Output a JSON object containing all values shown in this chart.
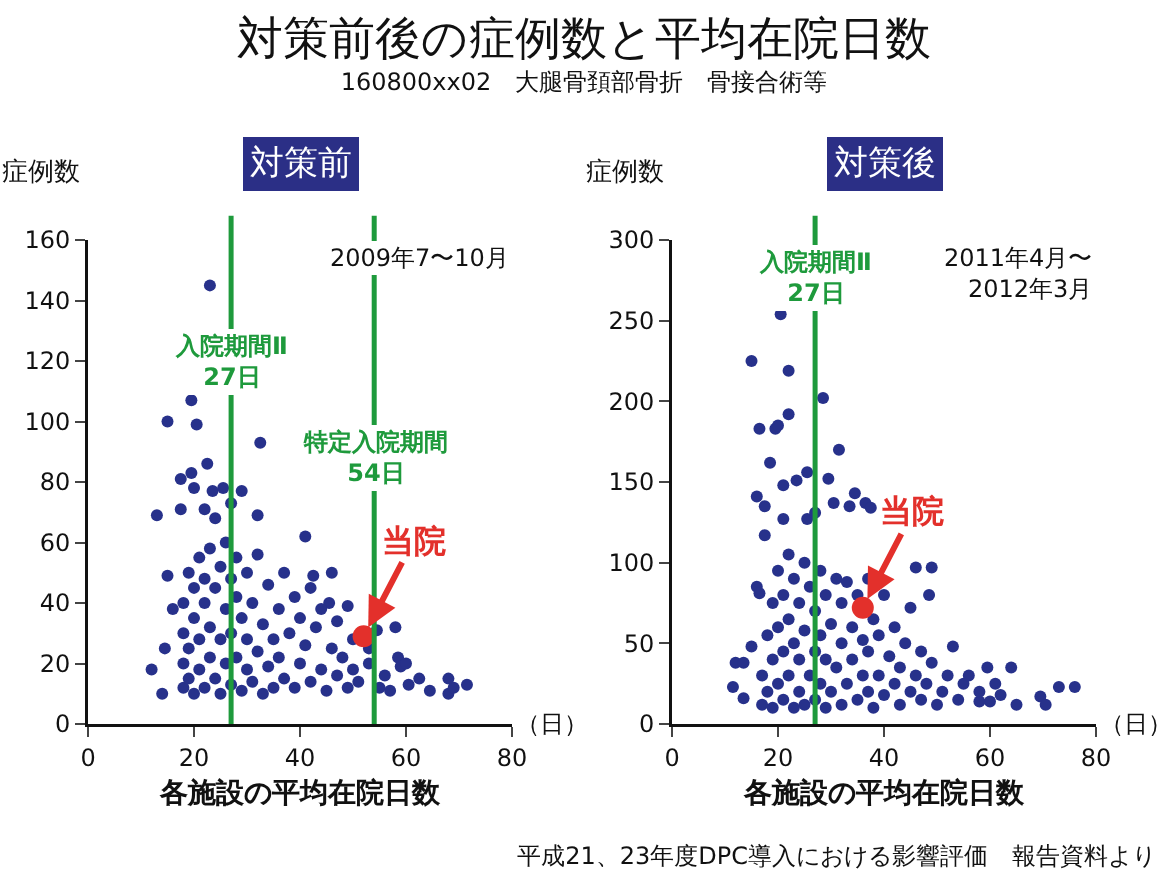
{
  "chart_data": [
    {
      "type": "other",
      "title": "対策前後の症例数と平均在院日数",
      "subtitle": "160800xx02　大腿骨頚部骨折　骨接合術等",
      "annotations": [
        "平成21、23年度DPC導入における影響評価　報告資料より"
      ]
    },
    {
      "type": "scatter",
      "title": "対策前",
      "xlabel": "各施設の平均在院日数",
      "ylabel": "症例数",
      "xlim": [
        0,
        80
      ],
      "xticks": [
        0,
        20,
        40,
        60,
        80
      ],
      "ylim": [
        0,
        160
      ],
      "yticks": [
        0,
        20,
        40,
        60,
        80,
        100,
        120,
        140,
        160
      ],
      "grid": false,
      "legend": false,
      "marker": "circle",
      "annotations": [
        "2009年7〜10月",
        "（日）"
      ],
      "ref_lines": [
        {
          "axis": "x",
          "value": 27,
          "label": "入院期間Ⅱ\n27日",
          "color": "#1e9a3c"
        },
        {
          "axis": "x",
          "value": 54,
          "label": "特定入院期間\n54日",
          "color": "#1e9a3c"
        }
      ],
      "series": [
        {
          "color": "#27318b",
          "x": [
            23,
            15,
            19.5,
            20.5,
            22.5,
            17.5,
            19.5,
            20,
            23.5,
            25.5,
            13,
            17.5,
            22,
            24,
            29,
            32.5,
            32,
            41,
            27,
            54.5,
            58,
            58.5,
            59,
            60.5,
            62.5,
            64.5,
            68,
            68,
            69,
            71.5,
            46,
            45.5,
            49,
            42.5,
            12,
            14.5,
            16,
            15,
            14,
            18,
            18,
            18,
            18,
            19,
            19,
            19,
            20,
            20,
            20,
            21,
            21,
            21,
            22,
            22,
            22,
            23,
            23,
            23,
            24,
            24,
            25,
            25,
            25,
            26,
            26,
            26,
            27,
            27,
            27,
            28,
            28,
            28,
            29,
            29,
            30,
            30,
            30,
            31,
            31,
            32,
            32,
            33,
            33,
            34,
            34,
            35,
            35,
            36,
            36,
            37,
            37,
            38,
            39,
            39,
            40,
            40,
            41,
            42,
            42,
            43,
            44,
            44,
            45,
            46,
            47,
            47,
            48,
            49,
            50,
            50,
            51,
            53,
            53,
            55,
            56,
            57,
            60
          ],
          "values": [
            145,
            100,
            107,
            99,
            86,
            81,
            83,
            78,
            77,
            78,
            69,
            71,
            71,
            68,
            77,
            93,
            69,
            62,
            73,
            31,
            32,
            22,
            19,
            13,
            15,
            11,
            15,
            10,
            12,
            13,
            50,
            40,
            39,
            49,
            18,
            25,
            38,
            49,
            10,
            12,
            20,
            30,
            40,
            15,
            25,
            50,
            10,
            35,
            45,
            18,
            28,
            55,
            12,
            40,
            48,
            22,
            32,
            58,
            15,
            45,
            10,
            28,
            52,
            20,
            38,
            60,
            13,
            30,
            48,
            22,
            42,
            55,
            11,
            35,
            18,
            28,
            50,
            14,
            40,
            24,
            56,
            10,
            33,
            19,
            46,
            28,
            12,
            38,
            22,
            15,
            50,
            30,
            12,
            42,
            20,
            35,
            26,
            14,
            45,
            32,
            18,
            38,
            11,
            25,
            16,
            34,
            22,
            12,
            28,
            18,
            14,
            20,
            25,
            12,
            16,
            11,
            20
          ]
        },
        {
          "name": "当院",
          "color": "#e3302b",
          "x": [
            52
          ],
          "values": [
            29
          ]
        }
      ]
    },
    {
      "type": "scatter",
      "title": "対策後",
      "xlabel": "各施設の平均在院日数",
      "ylabel": "症例数",
      "xlim": [
        0,
        80
      ],
      "xticks": [
        0,
        20,
        40,
        60,
        80
      ],
      "ylim": [
        0,
        300
      ],
      "yticks": [
        0,
        50,
        100,
        150,
        200,
        250,
        300
      ],
      "grid": false,
      "legend": false,
      "marker": "circle",
      "annotations": [
        "2011年4月〜\n2012年3月",
        "（日）"
      ],
      "ref_lines": [
        {
          "axis": "x",
          "value": 27,
          "label": "入院期間Ⅱ\n27日",
          "color": "#1e9a3c"
        }
      ],
      "series": [
        {
          "color": "#27318b",
          "x": [
            20.5,
            15,
            22,
            28.5,
            22,
            16.5,
            19.5,
            20,
            31.5,
            18.5,
            25.5,
            23.5,
            21,
            29.5,
            34.5,
            16,
            17.5,
            36.5,
            33.5,
            30.5,
            37.5,
            21,
            17.5,
            25.5,
            46,
            49,
            48.5,
            53,
            59.5,
            64,
            73,
            76,
            69.5,
            70.5,
            58,
            12,
            13.5,
            11.5,
            13.5,
            15,
            16,
            16.5,
            27,
            17,
            17,
            18,
            18,
            19,
            19,
            19,
            20,
            20,
            20,
            21,
            21,
            21,
            22,
            22,
            22,
            23,
            23,
            23,
            24,
            24,
            24,
            25,
            25,
            25,
            26,
            26,
            27,
            27,
            27,
            28,
            28,
            28,
            29,
            29,
            29,
            30,
            30,
            31,
            31,
            32,
            32,
            32,
            33,
            33,
            34,
            34,
            35,
            35,
            36,
            36,
            37,
            37,
            37,
            38,
            38,
            39,
            39,
            40,
            40,
            41,
            42,
            42,
            43,
            43,
            44,
            45,
            45,
            46,
            47,
            47,
            48,
            49,
            50,
            51,
            52,
            54,
            55,
            56,
            58,
            60,
            61,
            62,
            65
          ],
          "values": [
            254,
            225,
            219,
            202,
            192,
            183,
            183,
            185,
            170,
            162,
            156,
            151,
            148,
            152,
            143,
            141,
            135,
            137,
            135,
            137,
            134,
            127,
            117,
            127,
            97,
            97,
            80,
            48,
            35,
            35,
            23,
            23,
            17,
            12,
            14,
            38,
            38,
            23,
            16,
            48,
            85,
            81,
            131,
            12,
            30,
            20,
            55,
            10,
            40,
            75,
            25,
            60,
            95,
            15,
            45,
            80,
            30,
            65,
            105,
            10,
            50,
            90,
            20,
            40,
            75,
            12,
            58,
            100,
            30,
            85,
            15,
            45,
            70,
            25,
            55,
            95,
            10,
            40,
            80,
            20,
            62,
            35,
            90,
            12,
            50,
            75,
            25,
            88,
            40,
            60,
            15,
            80,
            30,
            52,
            20,
            45,
            90,
            10,
            65,
            30,
            55,
            18,
            80,
            42,
            25,
            60,
            12,
            35,
            50,
            20,
            72,
            30,
            15,
            45,
            25,
            38,
            12,
            20,
            30,
            15,
            25,
            30,
            20,
            14,
            25,
            18,
            12
          ]
        },
        {
          "name": "当院",
          "color": "#e3302b",
          "x": [
            36
          ],
          "values": [
            72
          ]
        }
      ]
    }
  ]
}
